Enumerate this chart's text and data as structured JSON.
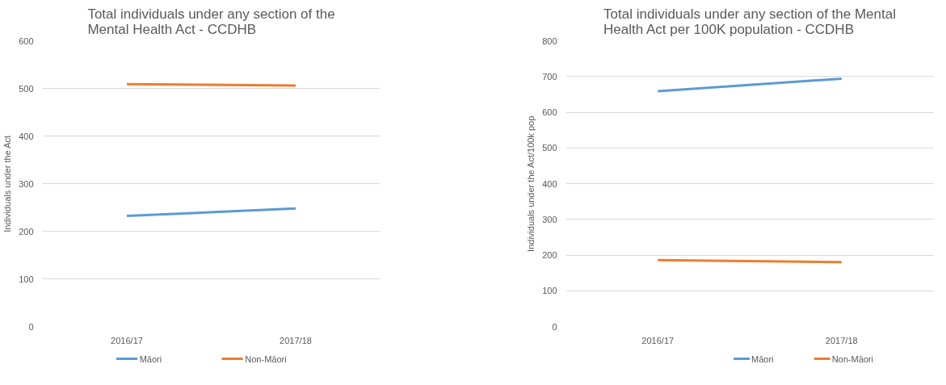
{
  "chart_data": [
    {
      "type": "line",
      "title": "Total individuals under any section of the Mental Health Act - CCDHB",
      "ylabel": "Individuals under the Act",
      "categories": [
        "2016/17",
        "2017/18"
      ],
      "ylim": [
        0,
        600
      ],
      "yticks": [
        0,
        100,
        200,
        300,
        400,
        500,
        600
      ],
      "grid": "y",
      "legend": "bottom",
      "marker": "none",
      "series": [
        {
          "name": "Māori",
          "color": "#5b9bd5",
          "values": [
            232,
            248
          ]
        },
        {
          "name": "Non-Māori",
          "color": "#ed7d31",
          "values": [
            509,
            506
          ]
        }
      ]
    },
    {
      "type": "line",
      "title": "Total individuals under any section of the Mental Health Act per 100K population - CCDHB",
      "ylabel": "Individuals under the Act/100k pop",
      "categories": [
        "2016/17",
        "2017/18"
      ],
      "ylim": [
        0,
        800
      ],
      "yticks": [
        0,
        100,
        200,
        300,
        400,
        500,
        600,
        700,
        800
      ],
      "grid": "y",
      "legend": "bottom",
      "marker": "none",
      "series": [
        {
          "name": "Māori",
          "color": "#5b9bd5",
          "values": [
            659,
            694
          ]
        },
        {
          "name": "Non-Māori",
          "color": "#ed7d31",
          "values": [
            186,
            180
          ]
        }
      ]
    }
  ]
}
